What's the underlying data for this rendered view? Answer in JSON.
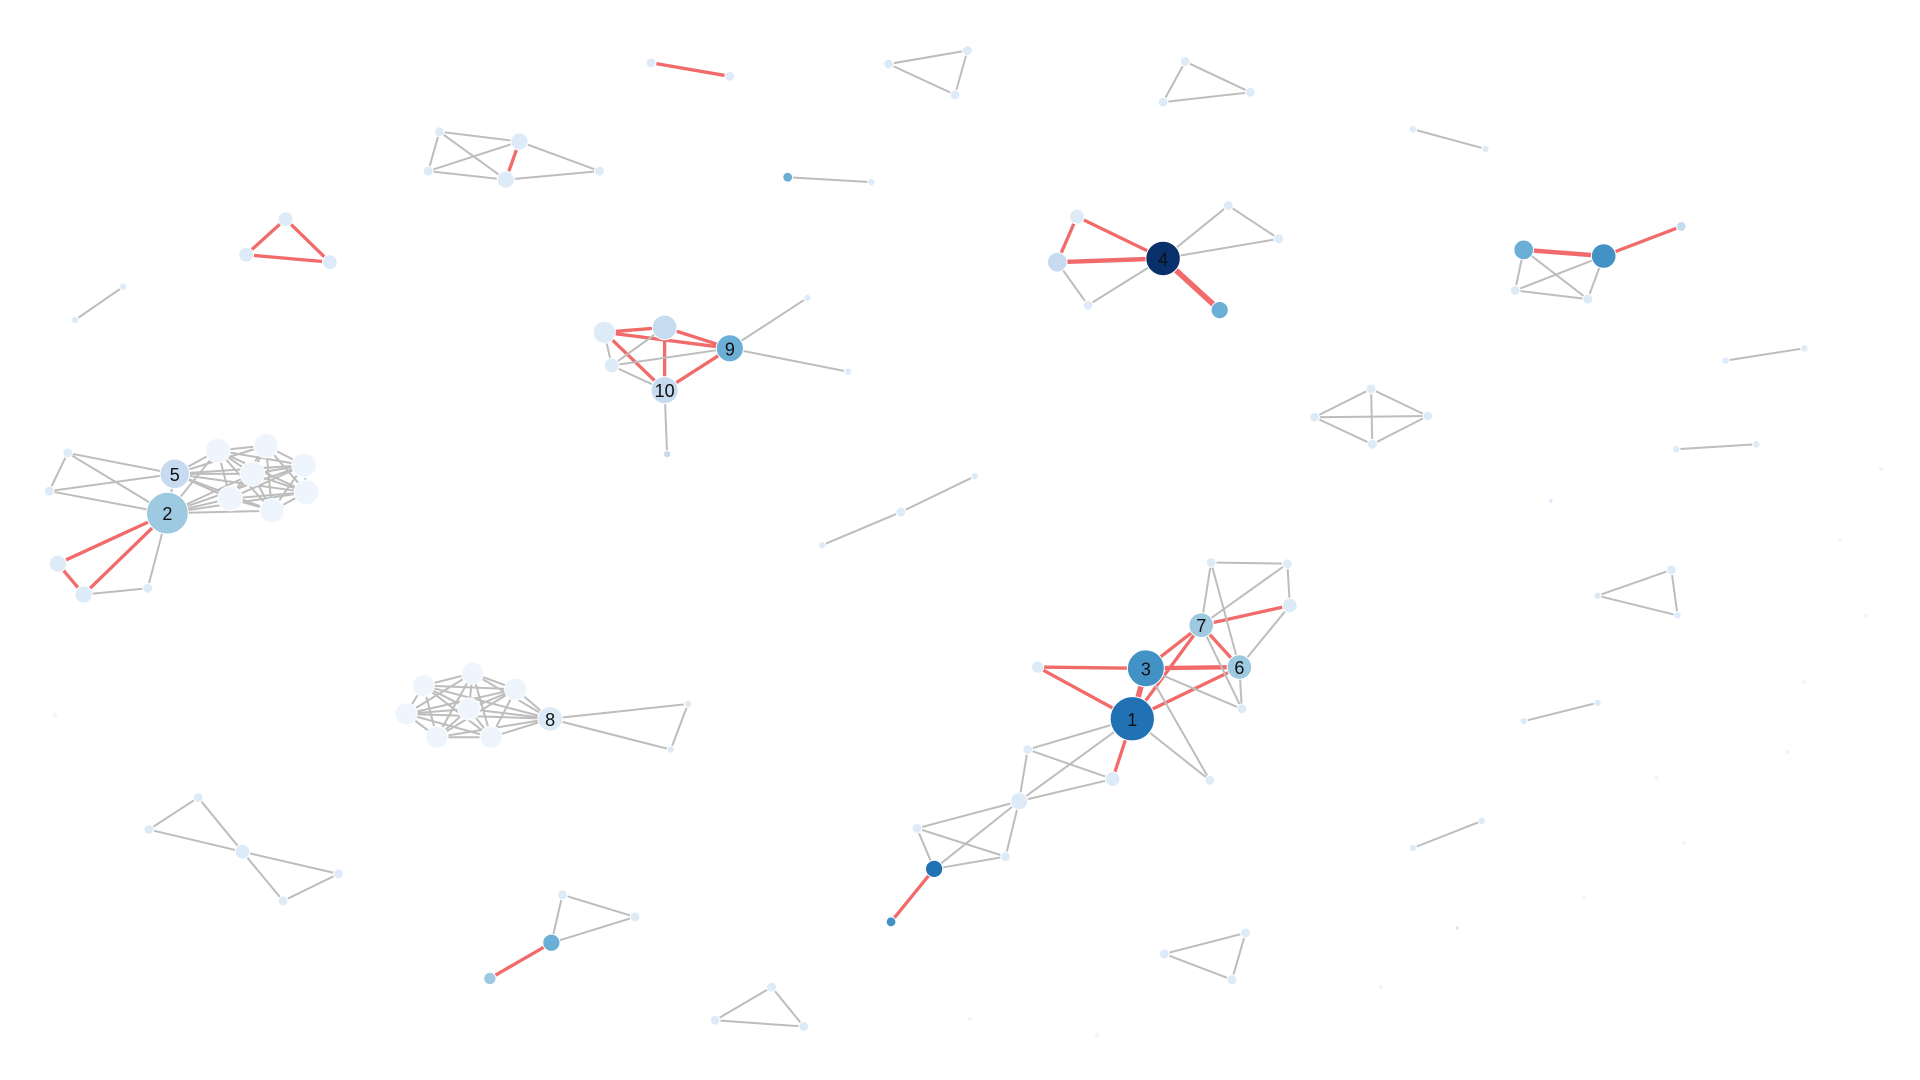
{
  "colors": {
    "background": "#ffffff",
    "edge_default": "#bdbdbd",
    "edge_highlight": "#f26b6b"
  },
  "legend": [],
  "labeled_nodes": [
    {
      "label": "1"
    },
    {
      "label": "2"
    },
    {
      "label": "3"
    },
    {
      "label": "4"
    },
    {
      "label": "5"
    },
    {
      "label": "6"
    },
    {
      "label": "7"
    },
    {
      "label": "8"
    },
    {
      "label": "9"
    },
    {
      "label": "10"
    }
  ]
}
